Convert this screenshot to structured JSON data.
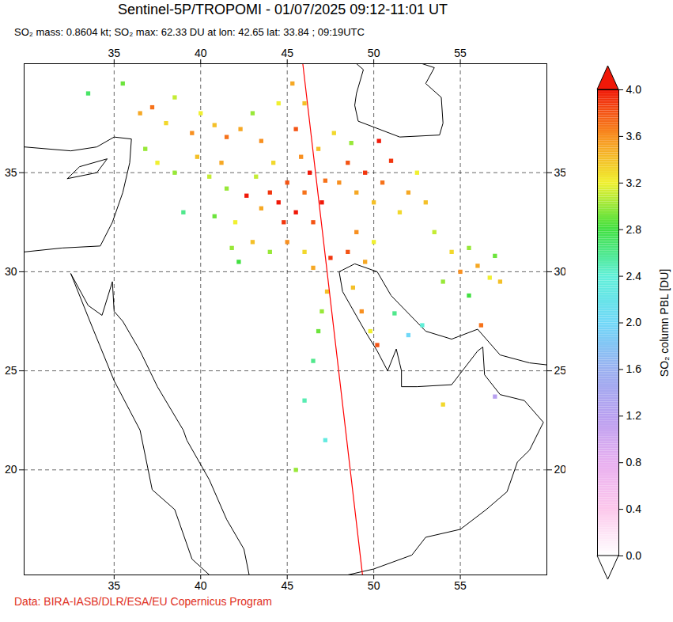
{
  "chart_data": {
    "type": "map",
    "title": "Sentinel-5P/TROPOMI - 01/07/2025 09:12-11:01 UT",
    "subtitle": "SO₂ mass: 0.8604 kt; SO₂ max: 62.33 DU at lon: 42.65 lat: 33.84 ; 09:19UTC",
    "caption": "Data: BIRA-IASB/DLR/ESA/EU Copernicus Program",
    "xlim": [
      29.8,
      60
    ],
    "xticks": [
      35,
      40,
      45,
      50,
      55
    ],
    "ylim": [
      14.7,
      40.5
    ],
    "yticks": [
      20,
      25,
      30,
      35
    ],
    "grid": true,
    "colorbar": {
      "label": "SO₂ column PBL [DU]",
      "range": [
        0,
        4
      ],
      "ticks": [
        {
          "value": 0,
          "label": "0.0"
        },
        {
          "value": 0.4,
          "label": "0.4"
        },
        {
          "value": 0.8,
          "label": "0.8"
        },
        {
          "value": 1.2,
          "label": "1.2"
        },
        {
          "value": 1.6,
          "label": "1.6"
        },
        {
          "value": 2,
          "label": "2.0"
        },
        {
          "value": 2.4,
          "label": "2.4"
        },
        {
          "value": 2.8,
          "label": "2.8"
        },
        {
          "value": 3.2,
          "label": "3.2"
        },
        {
          "value": 3.6,
          "label": "3.6"
        },
        {
          "value": 4,
          "label": "4.0"
        }
      ],
      "colors": [
        "#ffffff",
        "#fcc8ec",
        "#e8b0f0",
        "#b8a0f0",
        "#9ab0f0",
        "#70d8f8",
        "#60f0d8",
        "#40e040",
        "#f0f030",
        "#f89020",
        "#f01808"
      ]
    },
    "track": {
      "color": "#ff0000",
      "points": [
        [
          45.9,
          40.5
        ],
        [
          49.35,
          14.7
        ]
      ]
    },
    "coastlines": [
      [
        [
          29.8,
          31.0
        ],
        [
          32.0,
          31.2
        ],
        [
          34.2,
          31.3
        ],
        [
          34.9,
          32.5
        ],
        [
          35.5,
          34.0
        ],
        [
          35.9,
          35.5
        ],
        [
          36.0,
          36.7
        ],
        [
          35.0,
          36.8
        ],
        [
          34.0,
          36.3
        ],
        [
          32.5,
          36.1
        ],
        [
          29.8,
          36.3
        ]
      ],
      [
        [
          32.3,
          34.7
        ],
        [
          34.0,
          35.0
        ],
        [
          34.6,
          35.7
        ],
        [
          33.0,
          35.3
        ],
        [
          32.3,
          34.7
        ]
      ],
      [
        [
          32.5,
          29.9
        ],
        [
          33.6,
          27.5
        ],
        [
          35.0,
          24.5
        ],
        [
          36.5,
          22.0
        ],
        [
          37.2,
          19.0
        ],
        [
          38.5,
          18.0
        ],
        [
          39.5,
          15.5
        ],
        [
          40.5,
          14.7
        ]
      ],
      [
        [
          32.5,
          29.9
        ],
        [
          33.5,
          28.3
        ],
        [
          34.3,
          27.8
        ],
        [
          34.9,
          29.5
        ],
        [
          35.0,
          28.0
        ],
        [
          35.5,
          27.5
        ],
        [
          36.5,
          26.0
        ],
        [
          37.5,
          24.2
        ],
        [
          39.0,
          22.0
        ],
        [
          39.2,
          21.5
        ],
        [
          40.5,
          19.5
        ],
        [
          41.5,
          17.5
        ],
        [
          42.5,
          16.0
        ],
        [
          42.8,
          14.7
        ]
      ],
      [
        [
          48.0,
          30.0
        ],
        [
          48.2,
          29.0
        ],
        [
          49.5,
          27.0
        ],
        [
          50.2,
          26.0
        ],
        [
          50.8,
          25.0
        ],
        [
          51.3,
          26.1
        ],
        [
          51.6,
          25.0
        ],
        [
          51.6,
          24.2
        ],
        [
          52.5,
          24.2
        ],
        [
          54.5,
          24.3
        ],
        [
          56.0,
          26.0
        ],
        [
          56.3,
          26.2
        ],
        [
          56.4,
          24.8
        ],
        [
          57.3,
          23.8
        ],
        [
          58.7,
          23.5
        ],
        [
          59.8,
          22.4
        ],
        [
          59.0,
          21.0
        ],
        [
          58.3,
          20.4
        ],
        [
          57.7,
          18.9
        ],
        [
          56.5,
          18.0
        ],
        [
          55.0,
          17.0
        ],
        [
          53.0,
          16.6
        ],
        [
          52.2,
          15.7
        ],
        [
          50.0,
          15.0
        ],
        [
          48.5,
          14.7
        ]
      ],
      [
        [
          48.0,
          30.0
        ],
        [
          48.9,
          30.4
        ],
        [
          50.2,
          30.0
        ],
        [
          51.0,
          28.8
        ],
        [
          53.0,
          27.0
        ],
        [
          54.5,
          26.6
        ],
        [
          56.0,
          27.1
        ],
        [
          57.3,
          25.8
        ],
        [
          59.0,
          25.4
        ],
        [
          60.0,
          25.3
        ]
      ],
      [
        [
          49.0,
          40.5
        ],
        [
          49.4,
          40.2
        ],
        [
          49.0,
          39.0
        ],
        [
          48.9,
          38.4
        ],
        [
          49.1,
          37.6
        ],
        [
          50.3,
          37.2
        ],
        [
          51.5,
          36.8
        ],
        [
          53.8,
          36.9
        ],
        [
          54.0,
          37.5
        ],
        [
          53.9,
          38.8
        ],
        [
          53.0,
          39.5
        ],
        [
          53.5,
          40.3
        ],
        [
          52.8,
          40.5
        ]
      ]
    ],
    "cells": [
      {
        "lon": 44.0,
        "lat": 34.0,
        "value": 3.9
      },
      {
        "lon": 44.5,
        "lat": 33.5,
        "value": 4.2
      },
      {
        "lon": 45.0,
        "lat": 34.5,
        "value": 3.8
      },
      {
        "lon": 45.5,
        "lat": 33.0,
        "value": 4.5
      },
      {
        "lon": 46.0,
        "lat": 34.0,
        "value": 3.7
      },
      {
        "lon": 46.3,
        "lat": 35.0,
        "value": 4.1
      },
      {
        "lon": 45.8,
        "lat": 35.8,
        "value": 3.6
      },
      {
        "lon": 44.8,
        "lat": 32.5,
        "value": 3.9
      },
      {
        "lon": 43.5,
        "lat": 33.2,
        "value": 3.5
      },
      {
        "lon": 42.65,
        "lat": 33.84,
        "value": 62.33
      },
      {
        "lon": 42.0,
        "lat": 32.5,
        "value": 3.2
      },
      {
        "lon": 43.0,
        "lat": 31.5,
        "value": 3.4
      },
      {
        "lon": 44.0,
        "lat": 31.0,
        "value": 3.0
      },
      {
        "lon": 45.0,
        "lat": 31.5,
        "value": 3.6
      },
      {
        "lon": 46.0,
        "lat": 31.0,
        "value": 3.3
      },
      {
        "lon": 46.5,
        "lat": 32.5,
        "value": 3.8
      },
      {
        "lon": 47.0,
        "lat": 33.5,
        "value": 4.0
      },
      {
        "lon": 47.2,
        "lat": 34.6,
        "value": 3.7
      },
      {
        "lon": 46.8,
        "lat": 36.2,
        "value": 3.4
      },
      {
        "lon": 44.2,
        "lat": 35.5,
        "value": 3.3
      },
      {
        "lon": 43.2,
        "lat": 34.8,
        "value": 3.1
      },
      {
        "lon": 41.8,
        "lat": 31.2,
        "value": 3.0
      },
      {
        "lon": 42.2,
        "lat": 30.5,
        "value": 2.8
      },
      {
        "lon": 46.5,
        "lat": 30.2,
        "value": 3.5
      },
      {
        "lon": 47.3,
        "lat": 29.0,
        "value": 3.4
      },
      {
        "lon": 47.0,
        "lat": 28.0,
        "value": 3.0
      },
      {
        "lon": 46.8,
        "lat": 27.0,
        "value": 2.9
      },
      {
        "lon": 46.5,
        "lat": 25.5,
        "value": 2.6
      },
      {
        "lon": 47.5,
        "lat": 30.7,
        "value": 3.9
      },
      {
        "lon": 48.0,
        "lat": 34.5,
        "value": 3.6
      },
      {
        "lon": 48.5,
        "lat": 35.5,
        "value": 3.8
      },
      {
        "lon": 49.0,
        "lat": 34.0,
        "value": 3.5
      },
      {
        "lon": 49.5,
        "lat": 35.0,
        "value": 3.9
      },
      {
        "lon": 50.0,
        "lat": 33.5,
        "value": 3.4
      },
      {
        "lon": 50.5,
        "lat": 34.5,
        "value": 3.7
      },
      {
        "lon": 51.0,
        "lat": 35.6,
        "value": 3.9
      },
      {
        "lon": 51.5,
        "lat": 33.0,
        "value": 3.3
      },
      {
        "lon": 52.0,
        "lat": 34.0,
        "value": 3.5
      },
      {
        "lon": 52.5,
        "lat": 35.0,
        "value": 3.2
      },
      {
        "lon": 53.0,
        "lat": 33.5,
        "value": 3.4
      },
      {
        "lon": 53.5,
        "lat": 32.0,
        "value": 3.1
      },
      {
        "lon": 49.0,
        "lat": 32.0,
        "value": 3.6
      },
      {
        "lon": 48.5,
        "lat": 31.0,
        "value": 3.8
      },
      {
        "lon": 49.5,
        "lat": 30.5,
        "value": 3.5
      },
      {
        "lon": 50.0,
        "lat": 31.5,
        "value": 3.2
      },
      {
        "lon": 48.7,
        "lat": 36.5,
        "value": 3.0
      },
      {
        "lon": 50.3,
        "lat": 36.6,
        "value": 4.0
      },
      {
        "lon": 47.7,
        "lat": 37.0,
        "value": 3.3
      },
      {
        "lon": 54.5,
        "lat": 31.0,
        "value": 3.3
      },
      {
        "lon": 55.0,
        "lat": 30.0,
        "value": 3.6
      },
      {
        "lon": 55.5,
        "lat": 31.2,
        "value": 3.0
      },
      {
        "lon": 56.0,
        "lat": 30.3,
        "value": 3.5
      },
      {
        "lon": 56.7,
        "lat": 29.7,
        "value": 3.2
      },
      {
        "lon": 57.0,
        "lat": 30.8,
        "value": 2.9
      },
      {
        "lon": 57.3,
        "lat": 29.5,
        "value": 3.4
      },
      {
        "lon": 54.0,
        "lat": 29.5,
        "value": 3.0
      },
      {
        "lon": 55.5,
        "lat": 28.8,
        "value": 2.8
      },
      {
        "lon": 56.2,
        "lat": 27.3,
        "value": 3.7
      },
      {
        "lon": 48.8,
        "lat": 29.2,
        "value": 3.4
      },
      {
        "lon": 49.3,
        "lat": 28.0,
        "value": 3.6
      },
      {
        "lon": 49.8,
        "lat": 27.0,
        "value": 3.2
      },
      {
        "lon": 50.2,
        "lat": 26.3,
        "value": 3.8
      },
      {
        "lon": 51.2,
        "lat": 27.9,
        "value": 2.6
      },
      {
        "lon": 52.8,
        "lat": 27.3,
        "value": 2.4
      },
      {
        "lon": 54.0,
        "lat": 23.3,
        "value": 3.3
      },
      {
        "lon": 36.5,
        "lat": 38.0,
        "value": 3.5
      },
      {
        "lon": 37.2,
        "lat": 38.3,
        "value": 3.7
      },
      {
        "lon": 38.0,
        "lat": 37.5,
        "value": 3.3
      },
      {
        "lon": 38.5,
        "lat": 38.8,
        "value": 3.1
      },
      {
        "lon": 39.5,
        "lat": 37.0,
        "value": 3.6
      },
      {
        "lon": 40.0,
        "lat": 38.0,
        "value": 3.2
      },
      {
        "lon": 40.8,
        "lat": 37.4,
        "value": 3.4
      },
      {
        "lon": 41.5,
        "lat": 36.8,
        "value": 3.7
      },
      {
        "lon": 42.3,
        "lat": 37.2,
        "value": 3.5
      },
      {
        "lon": 43.0,
        "lat": 38.0,
        "value": 3.0
      },
      {
        "lon": 43.5,
        "lat": 36.6,
        "value": 3.6
      },
      {
        "lon": 36.8,
        "lat": 36.2,
        "value": 3.0
      },
      {
        "lon": 37.5,
        "lat": 35.5,
        "value": 3.2
      },
      {
        "lon": 38.5,
        "lat": 35.0,
        "value": 3.0
      },
      {
        "lon": 39.8,
        "lat": 35.8,
        "value": 3.4
      },
      {
        "lon": 40.5,
        "lat": 34.8,
        "value": 3.1
      },
      {
        "lon": 41.2,
        "lat": 35.5,
        "value": 3.5
      },
      {
        "lon": 35.5,
        "lat": 39.5,
        "value": 2.9
      },
      {
        "lon": 33.5,
        "lat": 39.0,
        "value": 2.7
      },
      {
        "lon": 44.5,
        "lat": 38.5,
        "value": 3.2
      },
      {
        "lon": 45.3,
        "lat": 39.5,
        "value": 3.5
      },
      {
        "lon": 46.0,
        "lat": 38.5,
        "value": 3.4
      },
      {
        "lon": 45.5,
        "lat": 37.2,
        "value": 3.8
      },
      {
        "lon": 41.5,
        "lat": 34.2,
        "value": 3.0
      },
      {
        "lon": 39.0,
        "lat": 33.0,
        "value": 2.6
      },
      {
        "lon": 40.8,
        "lat": 32.8,
        "value": 2.9
      },
      {
        "lon": 46.0,
        "lat": 23.5,
        "value": 2.5
      },
      {
        "lon": 47.2,
        "lat": 21.5,
        "value": 2.3
      },
      {
        "lon": 45.5,
        "lat": 20.0,
        "value": 3.0
      },
      {
        "lon": 52.0,
        "lat": 26.8,
        "value": 2.0
      },
      {
        "lon": 57.0,
        "lat": 23.7,
        "value": 1.2
      }
    ]
  }
}
